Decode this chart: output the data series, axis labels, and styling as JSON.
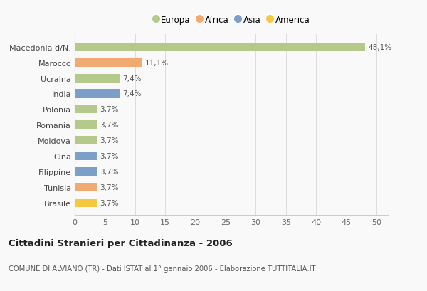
{
  "labels": [
    "Macedonia d/N.",
    "Marocco",
    "Ucraina",
    "India",
    "Polonia",
    "Romania",
    "Moldova",
    "Cina",
    "Filippine",
    "Tunisia",
    "Brasile"
  ],
  "values": [
    48.1,
    11.1,
    7.4,
    7.4,
    3.7,
    3.7,
    3.7,
    3.7,
    3.7,
    3.7,
    3.7
  ],
  "bar_colors": [
    "#b5c98a",
    "#f0aa72",
    "#b5c98a",
    "#7b9fc8",
    "#b5c98a",
    "#b5c98a",
    "#b5c98a",
    "#7b9fc8",
    "#7b9fc8",
    "#f0aa72",
    "#f5c842"
  ],
  "value_labels": [
    "48,1%",
    "11,1%",
    "7,4%",
    "7,4%",
    "3,7%",
    "3,7%",
    "3,7%",
    "3,7%",
    "3,7%",
    "3,7%",
    "3,7%"
  ],
  "legend": [
    {
      "label": "Europa",
      "color": "#b5c98a"
    },
    {
      "label": "Africa",
      "color": "#f0aa72"
    },
    {
      "label": "Asia",
      "color": "#7b9fc8"
    },
    {
      "label": "America",
      "color": "#f5c842"
    }
  ],
  "title": "Cittadini Stranieri per Cittadinanza - 2006",
  "subtitle": "COMUNE DI ALVIANO (TR) - Dati ISTAT al 1° gennaio 2006 - Elaborazione TUTTITALIA.IT",
  "xlim": [
    0,
    52
  ],
  "xticks": [
    0,
    5,
    10,
    15,
    20,
    25,
    30,
    35,
    40,
    45,
    50
  ],
  "background_color": "#f9f9f9",
  "grid_color": "#dddddd"
}
